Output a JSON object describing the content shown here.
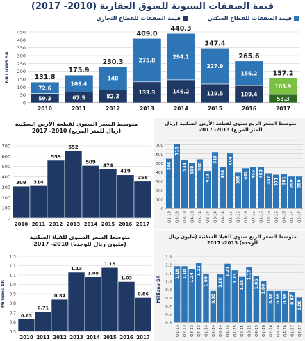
{
  "main_title": "قيمة الصفقات السنوية للسوق العقارية (2010- 2017)",
  "legend": {
    "residential": "قيمة الصفقات للقطاع السكني",
    "commercial": "قيمة الصفقات للقطاع التجاري"
  },
  "colors": {
    "residential": "#2e75b6",
    "commercial": "#1f3864",
    "highlight_light": "#7ac143",
    "highlight_dark": "#2d6a1f",
    "blue_bar": "#2e75b6",
    "dark_bar": "#1f3864"
  },
  "chart_data": [
    {
      "id": "annual_transactions",
      "type": "bar",
      "stacked": true,
      "title": "قيمة الصفقات السنوية للسوق العقارية (2010- 2017)",
      "ylabel": "BILLIONS SR",
      "ylim": [
        0,
        450
      ],
      "yticks": [
        0,
        50,
        100,
        150,
        200,
        250,
        300,
        350,
        400,
        450
      ],
      "grid": true,
      "legend_position": "top",
      "categories": [
        "2010",
        "2011",
        "2012",
        "2013",
        "2014",
        "2015",
        "2016",
        "2017"
      ],
      "totals": [
        131.8,
        175.9,
        230.3,
        409.0,
        440.3,
        347.4,
        265.6,
        157.2
      ],
      "series": [
        {
          "name": "قيمة الصفقات للقطاع التجاري",
          "values": [
            59.3,
            67.5,
            82.3,
            133.3,
            146.2,
            119.5,
            109.4,
            53.3
          ]
        },
        {
          "name": "قيمة الصفقات للقطاع السكني",
          "values": [
            72.6,
            108.4,
            148.0,
            275.8,
            294.1,
            227.9,
            156.2,
            103.9
          ]
        }
      ],
      "highlight_category": "2017"
    },
    {
      "id": "avg_land_price_annual",
      "type": "bar",
      "title": "متوسط السعر السنوي لقطعة الأرض السكنية (ريال للمتر المربع) 2010- 2017",
      "ylim": [
        0,
        700
      ],
      "yticks": [
        0,
        100,
        200,
        300,
        400,
        500,
        600,
        700
      ],
      "grid": true,
      "categories": [
        "2010",
        "2011",
        "2012",
        "2013",
        "2014",
        "2015",
        "2016",
        "2017"
      ],
      "values": [
        309,
        314,
        559,
        652,
        509,
        474,
        419,
        358
      ]
    },
    {
      "id": "avg_land_price_quarterly",
      "type": "bar",
      "title": "متوسط السعر الربع سنوي لقطعة الأرض السكنية (ريال للمتر المربع) 2013- 2017",
      "ylim": [
        0,
        750
      ],
      "yticks": [
        0,
        50,
        100,
        150,
        200,
        250,
        300,
        350,
        400,
        450,
        500,
        550,
        600,
        650,
        700,
        750
      ],
      "grid": true,
      "categories": [
        "Q1-13",
        "Q2-13",
        "Q3-13",
        "Q4-13",
        "Q1-14",
        "Q2-14",
        "Q3-14",
        "Q4-14",
        "Q1-15",
        "Q2-15",
        "Q3-15",
        "Q4-15",
        "Q1-16",
        "Q2-16",
        "Q3-16",
        "Q4-16",
        "Q1-17",
        "Q2-17"
      ],
      "values": [
        546,
        710,
        534,
        500,
        540,
        413,
        618,
        454,
        604,
        395,
        442,
        455,
        459,
        387,
        371,
        381,
        350,
        350
      ]
    },
    {
      "id": "avg_villa_price_annual",
      "type": "bar",
      "title": "متوسط السعر السنوي للفيلا السكنية (مليون ريال للوحدة) 2010- 2017",
      "ylabel": "Millions SR",
      "ylim": [
        0.5,
        1.3
      ],
      "yticks": [
        0.5,
        0.6,
        0.7,
        0.8,
        0.9,
        1.0,
        1.1,
        1.2,
        1.3
      ],
      "grid": true,
      "categories": [
        "2010",
        "2011",
        "2012",
        "2013",
        "2014",
        "2015",
        "2016",
        "2017"
      ],
      "values": [
        0.63,
        0.71,
        0.84,
        1.13,
        1.08,
        1.18,
        1.03,
        0.86
      ]
    },
    {
      "id": "avg_villa_price_quarterly",
      "type": "bar",
      "title": "متوسط السعر الربع سنوي للفيلا السكنية (مليون ريال للوحدة) 2013- 2017",
      "ylabel": "Millions SR",
      "ylim": [
        0.5,
        1.3
      ],
      "yticks": [
        0.5,
        0.6,
        0.7,
        0.8,
        0.9,
        1.0,
        1.1,
        1.2,
        1.3
      ],
      "grid": true,
      "categories": [
        "Q1-13",
        "Q2-13",
        "Q3-13",
        "Q4-13",
        "Q1-14",
        "Q2-14",
        "Q3-14",
        "Q4-14",
        "Q1-15",
        "Q2-15",
        "Q3-15",
        "Q4-15",
        "Q1-16",
        "Q2-16",
        "Q3-16",
        "Q4-16",
        "Q1-17",
        "Q2-17"
      ],
      "values": [
        1.18,
        1.18,
        1.14,
        1.22,
        1.09,
        0.88,
        1.08,
        1.21,
        1.13,
        1.05,
        1.17,
        1.06,
        1.0,
        0.88,
        0.88,
        0.88,
        0.87,
        0.8
      ]
    }
  ]
}
